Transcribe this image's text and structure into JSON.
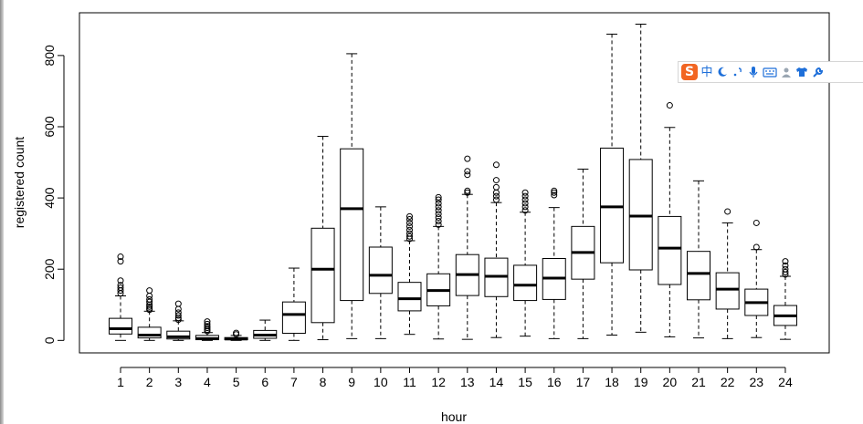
{
  "chart_data": {
    "type": "boxplot",
    "xlabel": "hour",
    "ylabel": "registered count",
    "categories": [
      "1",
      "2",
      "3",
      "4",
      "5",
      "6",
      "7",
      "8",
      "9",
      "10",
      "11",
      "12",
      "13",
      "14",
      "15",
      "16",
      "17",
      "18",
      "19",
      "20",
      "21",
      "22",
      "23",
      "24"
    ],
    "yticks": [
      0,
      200,
      400,
      600,
      800
    ],
    "ylim": [
      -35,
      920
    ],
    "boxes": [
      {
        "label": "1",
        "q1": 18,
        "median": 33,
        "q3": 62,
        "lower": 0,
        "upper": 125,
        "outliers": [
          132,
          140,
          148,
          155,
          168,
          222,
          235
        ]
      },
      {
        "label": "2",
        "q1": 7,
        "median": 15,
        "q3": 37,
        "lower": 0,
        "upper": 82,
        "outliers": [
          86,
          90,
          95,
          100,
          108,
          115,
          125,
          140
        ]
      },
      {
        "label": "3",
        "q1": 4,
        "median": 10,
        "q3": 26,
        "lower": 0,
        "upper": 55,
        "outliers": [
          58,
          63,
          70,
          78,
          88,
          103
        ]
      },
      {
        "label": "4",
        "q1": 2,
        "median": 5,
        "q3": 14,
        "lower": 0,
        "upper": 22,
        "outliers": [
          26,
          30,
          35,
          40,
          46,
          53
        ]
      },
      {
        "label": "5",
        "q1": 2,
        "median": 4,
        "q3": 8,
        "lower": 0,
        "upper": 14,
        "outliers": [
          17,
          21
        ]
      },
      {
        "label": "6",
        "q1": 6,
        "median": 15,
        "q3": 28,
        "lower": 0,
        "upper": 57,
        "outliers": []
      },
      {
        "label": "7",
        "q1": 20,
        "median": 73,
        "q3": 108,
        "lower": 0,
        "upper": 203,
        "outliers": []
      },
      {
        "label": "8",
        "q1": 50,
        "median": 200,
        "q3": 315,
        "lower": 2,
        "upper": 573,
        "outliers": []
      },
      {
        "label": "9",
        "q1": 112,
        "median": 370,
        "q3": 538,
        "lower": 5,
        "upper": 805,
        "outliers": []
      },
      {
        "label": "10",
        "q1": 132,
        "median": 183,
        "q3": 262,
        "lower": 5,
        "upper": 375,
        "outliers": []
      },
      {
        "label": "11",
        "q1": 83,
        "median": 117,
        "q3": 163,
        "lower": 17,
        "upper": 280,
        "outliers": [
          285,
          292,
          300,
          310,
          320,
          330,
          340,
          348
        ]
      },
      {
        "label": "12",
        "q1": 97,
        "median": 140,
        "q3": 187,
        "lower": 4,
        "upper": 320,
        "outliers": [
          325,
          335,
          345,
          355,
          365,
          375,
          385,
          395,
          402
        ]
      },
      {
        "label": "13",
        "q1": 126,
        "median": 185,
        "q3": 241,
        "lower": 3,
        "upper": 410,
        "outliers": [
          415,
          420,
          465,
          475,
          510
        ]
      },
      {
        "label": "14",
        "q1": 123,
        "median": 180,
        "q3": 231,
        "lower": 8,
        "upper": 387,
        "outliers": [
          395,
          405,
          415,
          430,
          450,
          493
        ]
      },
      {
        "label": "15",
        "q1": 112,
        "median": 155,
        "q3": 211,
        "lower": 12,
        "upper": 360,
        "outliers": [
          365,
          375,
          385,
          395,
          405,
          415
        ]
      },
      {
        "label": "16",
        "q1": 115,
        "median": 175,
        "q3": 230,
        "lower": 5,
        "upper": 373,
        "outliers": [
          408,
          415,
          420
        ]
      },
      {
        "label": "17",
        "q1": 172,
        "median": 247,
        "q3": 320,
        "lower": 5,
        "upper": 481,
        "outliers": []
      },
      {
        "label": "18",
        "q1": 218,
        "median": 375,
        "q3": 540,
        "lower": 15,
        "upper": 860,
        "outliers": []
      },
      {
        "label": "19",
        "q1": 198,
        "median": 349,
        "q3": 508,
        "lower": 23,
        "upper": 888,
        "outliers": []
      },
      {
        "label": "20",
        "q1": 157,
        "median": 259,
        "q3": 348,
        "lower": 10,
        "upper": 598,
        "outliers": [
          660
        ]
      },
      {
        "label": "21",
        "q1": 114,
        "median": 188,
        "q3": 250,
        "lower": 7,
        "upper": 448,
        "outliers": []
      },
      {
        "label": "22",
        "q1": 88,
        "median": 144,
        "q3": 190,
        "lower": 5,
        "upper": 330,
        "outliers": [
          362
        ]
      },
      {
        "label": "23",
        "q1": 70,
        "median": 106,
        "q3": 144,
        "lower": 8,
        "upper": 255,
        "outliers": [
          262,
          330
        ]
      },
      {
        "label": "24",
        "q1": 42,
        "median": 69,
        "q3": 98,
        "lower": 3,
        "upper": 180,
        "outliers": [
          185,
          192,
          200,
          210,
          222
        ]
      }
    ]
  },
  "ime_toolbar": {
    "logo": "S",
    "lang_label": "中",
    "items": [
      "moon-icon",
      "punctuation-icon",
      "microphone-icon",
      "keyboard-icon",
      "user-icon",
      "shirt-icon",
      "wrench-icon"
    ]
  }
}
